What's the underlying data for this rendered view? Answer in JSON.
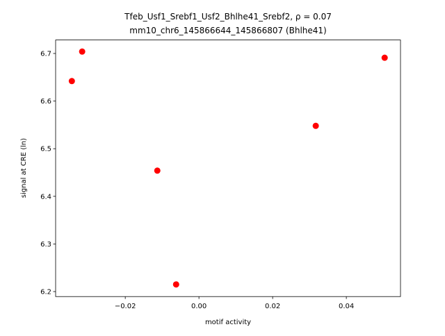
{
  "chart_data": {
    "type": "scatter",
    "title": "Tfeb_Usf1_Srebf1_Usf2_Bhlhe41_Srebf2, ρ = 0.07",
    "subtitle": "mm10_chr6_145866644_145866807 (Bhlhe41)",
    "x_label": "motif activity",
    "y_label": "signal at CRE (ln)",
    "color": "#ff0000",
    "x": [
      -0.0345,
      -0.0317,
      -0.0113,
      -0.0062,
      0.0317,
      0.0504
    ],
    "y": [
      6.642,
      6.704,
      6.454,
      6.215,
      6.548,
      6.691
    ],
    "xlim": [
      -0.0389,
      0.0547
    ],
    "ylim": [
      6.1895,
      6.7283
    ],
    "xticks": [
      {
        "value": -0.02,
        "label": "−0.02"
      },
      {
        "value": 0,
        "label": "0.00"
      },
      0.02,
      0.04
    ],
    "yticks": [
      6.2,
      6.3,
      6.4,
      6.5,
      6.6,
      6.7
    ],
    "grid": false
  }
}
